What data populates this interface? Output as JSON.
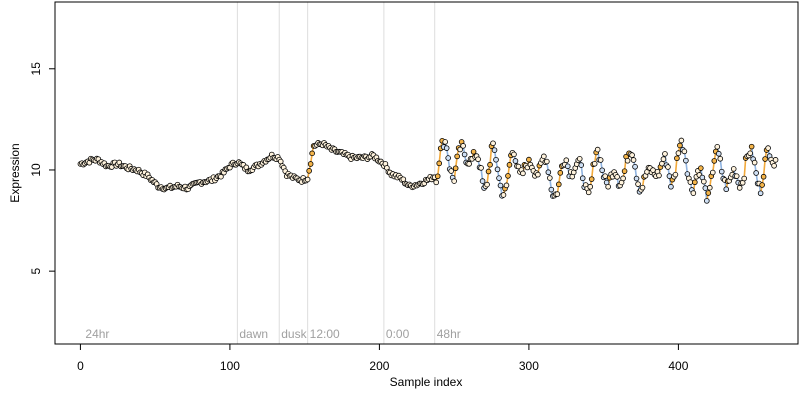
{
  "chart_data": {
    "type": "scatter",
    "title": "",
    "xlabel": "Sample index",
    "ylabel": "Expression",
    "xlim": [
      -17,
      480
    ],
    "ylim": [
      1.4,
      18.3
    ],
    "x_ticks": [
      0,
      100,
      200,
      300,
      400
    ],
    "y_ticks": [
      5,
      10,
      15
    ],
    "grid": false,
    "legend": "none",
    "phase_markers": [
      {
        "x": 2,
        "label": "24hr",
        "line": false
      },
      {
        "x": 105,
        "label": "dawn",
        "line": true
      },
      {
        "x": 133,
        "label": "dusk",
        "line": true
      },
      {
        "x": 152,
        "label": "12:00",
        "line": true
      },
      {
        "x": 203,
        "label": "0:00",
        "line": true
      },
      {
        "x": 237,
        "label": "48hr",
        "line": true
      }
    ],
    "colors": {
      "point_fill_light": "#fff3dd",
      "point_fill_orange": "#f5b54a",
      "point_fill_blue": "#cfe0f5",
      "point_stroke": "#000000",
      "line_blue": "#8fb3e0",
      "line_orange": "#f2a93b",
      "phase_line": "#dddddd",
      "axis": "#000000"
    },
    "series": [
      {
        "segments": [
          {
            "x": 0,
            "y": 10.3
          },
          {
            "x": 8,
            "y": 10.5
          },
          {
            "x": 12,
            "y": 10.5
          },
          {
            "x": 18,
            "y": 10.2
          },
          {
            "x": 25,
            "y": 10.3
          },
          {
            "x": 32,
            "y": 10.1
          },
          {
            "x": 38,
            "y": 10.0
          },
          {
            "x": 45,
            "y": 9.7
          },
          {
            "x": 52,
            "y": 9.2
          },
          {
            "x": 58,
            "y": 9.1
          },
          {
            "x": 65,
            "y": 9.2
          },
          {
            "x": 72,
            "y": 9.1
          },
          {
            "x": 80,
            "y": 9.4
          },
          {
            "x": 88,
            "y": 9.5
          },
          {
            "x": 95,
            "y": 9.8
          },
          {
            "x": 100,
            "y": 10.2
          },
          {
            "x": 105,
            "y": 10.4
          },
          {
            "x": 112,
            "y": 10.0
          },
          {
            "x": 118,
            "y": 10.2
          },
          {
            "x": 122,
            "y": 10.4
          },
          {
            "x": 128,
            "y": 10.7
          },
          {
            "x": 133,
            "y": 10.6
          },
          {
            "x": 138,
            "y": 9.8
          },
          {
            "x": 143,
            "y": 9.6
          },
          {
            "x": 148,
            "y": 9.5
          },
          {
            "x": 152,
            "y": 9.6
          },
          {
            "x": 156,
            "y": 11.2
          },
          {
            "x": 162,
            "y": 11.3
          },
          {
            "x": 168,
            "y": 11.0
          },
          {
            "x": 175,
            "y": 10.8
          },
          {
            "x": 182,
            "y": 10.6
          },
          {
            "x": 190,
            "y": 10.6
          },
          {
            "x": 196,
            "y": 10.7
          },
          {
            "x": 203,
            "y": 10.3
          },
          {
            "x": 208,
            "y": 9.8
          },
          {
            "x": 214,
            "y": 9.6
          },
          {
            "x": 220,
            "y": 9.2
          },
          {
            "x": 226,
            "y": 9.3
          },
          {
            "x": 232,
            "y": 9.5
          },
          {
            "x": 237,
            "y": 9.7
          },
          {
            "x": 240,
            "y": 10.5
          },
          {
            "x": 245,
            "y": 11.0
          },
          {
            "x": 250,
            "y": 10.0
          },
          {
            "x": 255,
            "y": 10.6
          },
          {
            "x": 260,
            "y": 11.1
          },
          {
            "x": 265,
            "y": 10.2
          },
          {
            "x": 270,
            "y": 9.4
          },
          {
            "x": 275,
            "y": 10.8
          },
          {
            "x": 280,
            "y": 9.6
          },
          {
            "x": 285,
            "y": 9.3
          },
          {
            "x": 290,
            "y": 10.6
          },
          {
            "x": 295,
            "y": 10.3
          },
          {
            "x": 300,
            "y": 9.7
          },
          {
            "x": 305,
            "y": 10.5
          },
          {
            "x": 310,
            "y": 10.2
          },
          {
            "x": 315,
            "y": 9.4
          },
          {
            "x": 320,
            "y": 9.2
          },
          {
            "x": 325,
            "y": 10.3
          },
          {
            "x": 330,
            "y": 10.5
          },
          {
            "x": 335,
            "y": 9.5
          },
          {
            "x": 340,
            "y": 9.3
          },
          {
            "x": 345,
            "y": 10.4
          },
          {
            "x": 350,
            "y": 10.2
          },
          {
            "x": 355,
            "y": 9.4
          },
          {
            "x": 360,
            "y": 9.5
          },
          {
            "x": 365,
            "y": 10.6
          },
          {
            "x": 370,
            "y": 10.3
          },
          {
            "x": 375,
            "y": 9.6
          },
          {
            "x": 380,
            "y": 9.3
          },
          {
            "x": 385,
            "y": 10.4
          },
          {
            "x": 390,
            "y": 10.1
          },
          {
            "x": 395,
            "y": 9.6
          },
          {
            "x": 400,
            "y": 11.0
          },
          {
            "x": 405,
            "y": 10.4
          },
          {
            "x": 410,
            "y": 9.5
          },
          {
            "x": 415,
            "y": 9.4
          },
          {
            "x": 420,
            "y": 9.2
          },
          {
            "x": 425,
            "y": 10.4
          },
          {
            "x": 430,
            "y": 10.1
          },
          {
            "x": 435,
            "y": 9.3
          },
          {
            "x": 440,
            "y": 9.5
          },
          {
            "x": 445,
            "y": 10.5
          },
          {
            "x": 450,
            "y": 10.3
          },
          {
            "x": 455,
            "y": 9.6
          },
          {
            "x": 460,
            "y": 10.4
          },
          {
            "x": 465,
            "y": 10.8
          }
        ]
      }
    ]
  }
}
